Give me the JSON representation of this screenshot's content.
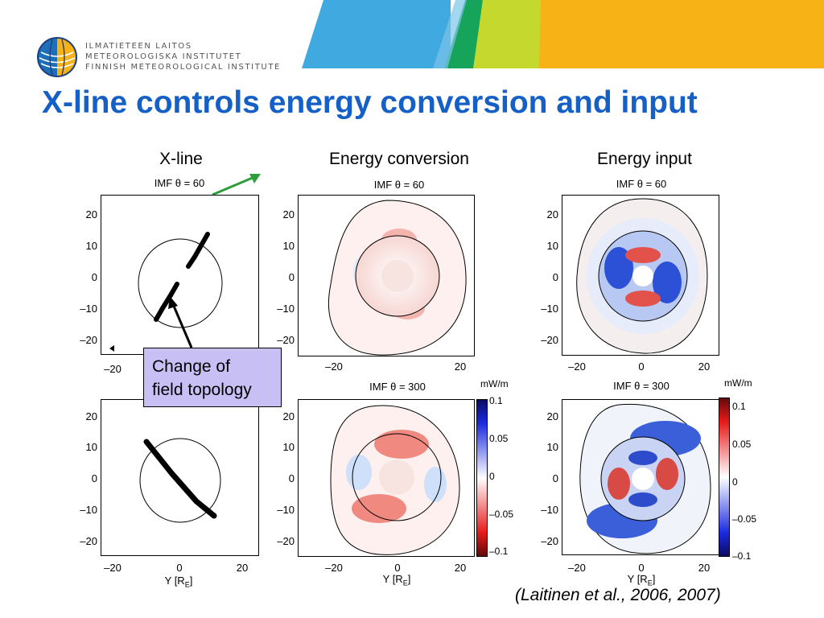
{
  "header": {
    "logo_lines": [
      "ILMATIETEEN LAITOS",
      "METEOROLOGISKA INSTITUTET",
      "FINNISH METEOROLOGICAL INSTITUTE"
    ],
    "band_colors": [
      "#3fa9e0",
      "#16a35a",
      "#c5d82e",
      "#f7b215"
    ]
  },
  "title": "X-line controls energy conversion and input",
  "columns": [
    "X-line",
    "Energy conversion",
    "Energy input"
  ],
  "panels": {
    "top_title": "IMF θ = 60",
    "bottom_title": "IMF θ = 300"
  },
  "axes": {
    "y_ticks": [
      "20",
      "10",
      "0",
      "–10",
      "–20"
    ],
    "x_ticks": [
      "–20",
      "0",
      "20"
    ],
    "x_label": "Y [R",
    "x_label_sub": "E",
    "x_label_end": "]"
  },
  "colorbar": {
    "unit": "mW/m",
    "ticks_mid": [
      "0.1",
      "0.05",
      "0",
      "–0.05",
      "–0.1"
    ],
    "ticks_right": [
      "0.1",
      "0.05",
      "0",
      "–0.05",
      "–0.1"
    ]
  },
  "annotations": {
    "callout_line1": "Change of",
    "callout_line2": "field topology",
    "citation": "(Laitinen et al., 2006, 2007)"
  },
  "colors": {
    "title": "#1560c7",
    "callout_fill": "#c8bff5",
    "arrow_green": "#2e9e3c"
  }
}
